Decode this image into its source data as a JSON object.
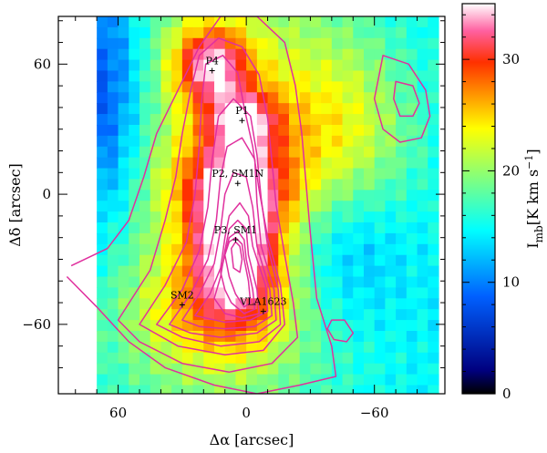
{
  "chart_data": {
    "type": "heatmap",
    "colormap": "jet",
    "x_axis": {
      "label": "Δα  [arcsec]",
      "reversed": true,
      "range": [
        88,
        -93
      ],
      "ticks": [
        60,
        0,
        -60
      ],
      "tick_labels": [
        "60",
        "0",
        "−60"
      ]
    },
    "y_axis": {
      "label": "Δδ  [arcsec]",
      "range": [
        -92,
        82
      ],
      "ticks": [
        60,
        0,
        -60
      ],
      "tick_labels": [
        "60",
        "0",
        "−60"
      ]
    },
    "colorbar": {
      "label_main": "I",
      "label_sub": "mb",
      "label_units": "[K km s",
      "label_sup": "−1",
      "label_close": "]",
      "range": [
        0,
        35
      ],
      "ticks": [
        0,
        10,
        20,
        30
      ],
      "tick_labels": [
        "0",
        "10",
        "20",
        "30"
      ]
    },
    "contour_color": "#e0309e",
    "map_extent": {
      "x": [
        70,
        -88
      ],
      "y": [
        -90,
        82
      ]
    },
    "sources": [
      {
        "name": "P4",
        "x": 16,
        "y": 57
      },
      {
        "name": "P1",
        "x": 2,
        "y": 34
      },
      {
        "name": "P2, SM1N",
        "x": 4,
        "y": 5
      },
      {
        "name": "P3, SM1",
        "x": 5,
        "y": -21
      },
      {
        "name": "SM2",
        "x": 30,
        "y": -51
      },
      {
        "name": "VLA1623",
        "x": -8,
        "y": -54
      }
    ],
    "emission_components": [
      {
        "x": 5,
        "y": -25,
        "sx": 14,
        "sy": 22,
        "amp": 17
      },
      {
        "x": 5,
        "y": 5,
        "sx": 18,
        "sy": 14,
        "amp": 10
      },
      {
        "x": 2,
        "y": 34,
        "sx": 12,
        "sy": 10,
        "amp": 12
      },
      {
        "x": 16,
        "y": 60,
        "sx": 12,
        "sy": 12,
        "amp": 14
      },
      {
        "x": 18,
        "y": -56,
        "sx": 28,
        "sy": 18,
        "amp": 5
      },
      {
        "x": 10,
        "y": 10,
        "sx": 45,
        "sy": 90,
        "amp": 9
      },
      {
        "x": -45,
        "y": 30,
        "sx": 25,
        "sy": 30,
        "amp": 6
      }
    ],
    "background_components": [
      {
        "x": 66,
        "y": 45,
        "sx": 14,
        "sy": 45,
        "amp": -9
      },
      {
        "x": -45,
        "y": -25,
        "sx": 20,
        "sy": 25,
        "amp": -5
      }
    ],
    "background_level": 14,
    "contours": [
      {
        "points": [
          [
            82,
            -33
          ],
          [
            65,
            -25
          ],
          [
            55,
            -12
          ],
          [
            48,
            8
          ],
          [
            42,
            28
          ],
          [
            32,
            48
          ],
          [
            22,
            68
          ],
          [
            12,
            82
          ],
          [
            -5,
            82
          ],
          [
            -18,
            70
          ],
          [
            -23,
            50
          ],
          [
            -26,
            28
          ],
          [
            -28,
            5
          ],
          [
            -30,
            -18
          ],
          [
            -33,
            -48
          ],
          [
            -40,
            -70
          ],
          [
            -42,
            -84
          ],
          [
            -25,
            -88
          ],
          [
            -5,
            -92
          ],
          [
            15,
            -88
          ],
          [
            38,
            -80
          ],
          [
            55,
            -68
          ],
          [
            70,
            -52
          ],
          [
            84,
            -38
          ]
        ],
        "closed": false
      },
      {
        "points": [
          [
            60,
            -58
          ],
          [
            45,
            -35
          ],
          [
            38,
            -12
          ],
          [
            33,
            8
          ],
          [
            30,
            28
          ],
          [
            26,
            48
          ],
          [
            22,
            64
          ],
          [
            13,
            72
          ],
          [
            2,
            68
          ],
          [
            -6,
            55
          ],
          [
            -10,
            35
          ],
          [
            -12,
            15
          ],
          [
            -14,
            -5
          ],
          [
            -18,
            -28
          ],
          [
            -22,
            -50
          ],
          [
            -24,
            -66
          ],
          [
            -12,
            -78
          ],
          [
            8,
            -82
          ],
          [
            30,
            -78
          ],
          [
            50,
            -68
          ]
        ],
        "closed": true
      },
      {
        "points": [
          [
            50,
            -60
          ],
          [
            38,
            -42
          ],
          [
            28,
            -22
          ],
          [
            24,
            0
          ],
          [
            22,
            22
          ],
          [
            21,
            42
          ],
          [
            19,
            60
          ],
          [
            11,
            64
          ],
          [
            4,
            56
          ],
          [
            1,
            40
          ],
          [
            -3,
            22
          ],
          [
            -6,
            2
          ],
          [
            -10,
            -20
          ],
          [
            -16,
            -42
          ],
          [
            -18,
            -60
          ],
          [
            -8,
            -72
          ],
          [
            10,
            -74
          ],
          [
            32,
            -70
          ]
        ],
        "closed": true
      },
      {
        "points": [
          [
            42,
            -60
          ],
          [
            30,
            -44
          ],
          [
            22,
            -26
          ],
          [
            18,
            -6
          ],
          [
            16,
            16
          ],
          [
            13,
            36
          ],
          [
            6,
            44
          ],
          [
            -2,
            36
          ],
          [
            -5,
            18
          ],
          [
            -7,
            -2
          ],
          [
            -10,
            -24
          ],
          [
            -15,
            -44
          ],
          [
            -16,
            -60
          ],
          [
            -6,
            -68
          ],
          [
            12,
            -70
          ],
          [
            30,
            -66
          ]
        ],
        "closed": true
      },
      {
        "points": [
          [
            36,
            -60
          ],
          [
            26,
            -46
          ],
          [
            18,
            -30
          ],
          [
            14,
            -12
          ],
          [
            12,
            8
          ],
          [
            9,
            22
          ],
          [
            2,
            26
          ],
          [
            -4,
            16
          ],
          [
            -5,
            -4
          ],
          [
            -7,
            -24
          ],
          [
            -13,
            -44
          ],
          [
            -14,
            -58
          ],
          [
            -5,
            -64
          ],
          [
            12,
            -66
          ],
          [
            26,
            -64
          ]
        ],
        "closed": true
      },
      {
        "points": [
          [
            30,
            -58
          ],
          [
            22,
            -46
          ],
          [
            15,
            -32
          ],
          [
            12,
            -16
          ],
          [
            10,
            0
          ],
          [
            6,
            10
          ],
          [
            0,
            8
          ],
          [
            -3,
            -6
          ],
          [
            -5,
            -24
          ],
          [
            -11,
            -44
          ],
          [
            -12,
            -56
          ],
          [
            -4,
            -61
          ],
          [
            10,
            -62
          ],
          [
            22,
            -61
          ]
        ],
        "closed": true
      },
      {
        "points": [
          [
            24,
            -56
          ],
          [
            17,
            -46
          ],
          [
            12,
            -34
          ],
          [
            10,
            -20
          ],
          [
            8,
            -10
          ],
          [
            3,
            -4
          ],
          [
            -1,
            -10
          ],
          [
            -3,
            -24
          ],
          [
            -9,
            -42
          ],
          [
            -10,
            -54
          ],
          [
            -2,
            -58
          ],
          [
            10,
            -59
          ]
        ],
        "closed": true
      },
      {
        "points": [
          [
            15,
            -48
          ],
          [
            12,
            -38
          ],
          [
            10,
            -26
          ],
          [
            8,
            -16
          ],
          [
            4,
            -12
          ],
          [
            0,
            -16
          ],
          [
            -1,
            -28
          ],
          [
            -5,
            -44
          ],
          [
            -6,
            -55
          ],
          [
            2,
            -57
          ],
          [
            10,
            -55
          ]
        ],
        "closed": true
      },
      {
        "points": [
          [
            12,
            -36
          ],
          [
            10,
            -28
          ],
          [
            8,
            -20
          ],
          [
            4,
            -17
          ],
          [
            1,
            -21
          ],
          [
            0,
            -30
          ],
          [
            -3,
            -44
          ],
          [
            -4,
            -53
          ],
          [
            1,
            -55
          ],
          [
            7,
            -50
          ],
          [
            10,
            -44
          ]
        ],
        "closed": true
      },
      {
        "points": [
          [
            10,
            -28
          ],
          [
            8,
            -22
          ],
          [
            5,
            -20
          ],
          [
            2,
            -23
          ],
          [
            1,
            -30
          ],
          [
            -1,
            -40
          ],
          [
            -2,
            -50
          ],
          [
            1,
            -52
          ],
          [
            5,
            -46
          ],
          [
            8,
            -38
          ]
        ],
        "closed": true
      },
      {
        "points": [
          [
            7,
            -25
          ],
          [
            5,
            -22
          ],
          [
            3,
            -24
          ],
          [
            2,
            -30
          ],
          [
            3,
            -36
          ],
          [
            6,
            -34
          ]
        ],
        "closed": true
      },
      {
        "points": [
          [
            -64,
            64
          ],
          [
            -76,
            60
          ],
          [
            -84,
            48
          ],
          [
            -86,
            36
          ],
          [
            -82,
            26
          ],
          [
            -72,
            24
          ],
          [
            -64,
            30
          ],
          [
            -60,
            44
          ]
        ],
        "closed": true
      },
      {
        "points": [
          [
            -70,
            52
          ],
          [
            -78,
            50
          ],
          [
            -81,
            42
          ],
          [
            -78,
            36
          ],
          [
            -72,
            36
          ],
          [
            -69,
            44
          ]
        ],
        "closed": true
      },
      {
        "points": [
          [
            -40,
            -58
          ],
          [
            -46,
            -58
          ],
          [
            -50,
            -64
          ],
          [
            -47,
            -68
          ],
          [
            -41,
            -67
          ],
          [
            -38,
            -62
          ]
        ],
        "closed": true
      }
    ]
  }
}
